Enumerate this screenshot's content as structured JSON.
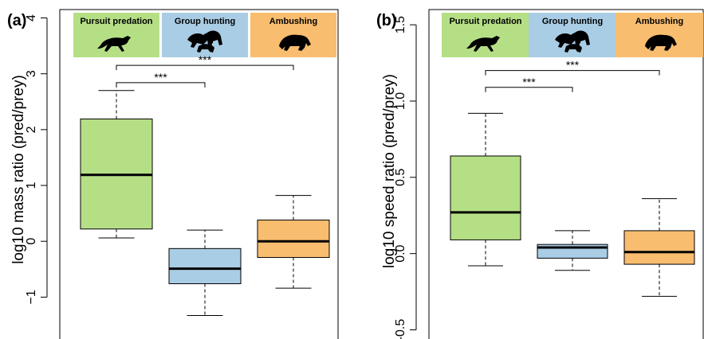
{
  "chart_data": [
    {
      "type": "box",
      "panel_label": "(a)",
      "ylabel": "log10 mass ratio (pred/prey)",
      "ylim": [
        -1.75,
        4.15
      ],
      "yticks": [
        -1,
        0,
        1,
        2,
        3,
        4
      ],
      "ytick_labels": [
        "−1",
        "0",
        "1",
        "2",
        "3",
        "4"
      ],
      "grid": false,
      "categories": [
        {
          "label": "Pursuit predation",
          "color": "#b5df85",
          "icon": "cheetah-silhouette-icon",
          "whisker_low": 0.06,
          "q1": 0.22,
          "median": 1.19,
          "q3": 2.19,
          "whisker_high": 2.7
        },
        {
          "label": "Group hunting",
          "color": "#a9cde4",
          "icon": "lion-pride-silhouette-icon",
          "whisker_low": -1.33,
          "q1": -0.76,
          "median": -0.49,
          "q3": -0.13,
          "whisker_high": 0.2
        },
        {
          "label": "Ambushing",
          "color": "#f9bd6f",
          "icon": "leopard-silhouette-icon",
          "whisker_low": -0.84,
          "q1": -0.29,
          "median": 0.0,
          "q3": 0.38,
          "whisker_high": 0.82
        }
      ],
      "significance": [
        {
          "from": 0,
          "to": 1,
          "label": "***",
          "y": 2.84
        },
        {
          "from": 0,
          "to": 2,
          "label": "***",
          "y": 3.15
        }
      ]
    },
    {
      "type": "box",
      "panel_label": "(b)",
      "ylabel": "log10 speed ratio (pred/prey)",
      "ylim": [
        -0.56,
        1.6
      ],
      "yticks": [
        -0.5,
        0.0,
        0.5,
        1.0,
        1.5
      ],
      "ytick_labels": [
        "-0.5",
        "0.0",
        "0.5",
        "1.0",
        "1.5"
      ],
      "grid": false,
      "categories": [
        {
          "label": "Pursuit predation",
          "color": "#b5df85",
          "icon": "cheetah-silhouette-icon",
          "whisker_low": -0.08,
          "q1": 0.09,
          "median": 0.27,
          "q3": 0.64,
          "whisker_high": 0.92
        },
        {
          "label": "Group hunting",
          "color": "#a9cde4",
          "icon": "lion-pride-silhouette-icon",
          "whisker_low": -0.11,
          "q1": -0.03,
          "median": 0.04,
          "q3": 0.06,
          "whisker_high": 0.15
        },
        {
          "label": "Ambushing",
          "color": "#f9bd6f",
          "icon": "leopard-silhouette-icon",
          "whisker_low": -0.28,
          "q1": -0.07,
          "median": 0.01,
          "q3": 0.15,
          "whisker_high": 0.36
        }
      ],
      "significance": [
        {
          "from": 0,
          "to": 1,
          "label": "***",
          "y": 1.09
        },
        {
          "from": 0,
          "to": 2,
          "label": "***",
          "y": 1.2
        }
      ]
    }
  ]
}
